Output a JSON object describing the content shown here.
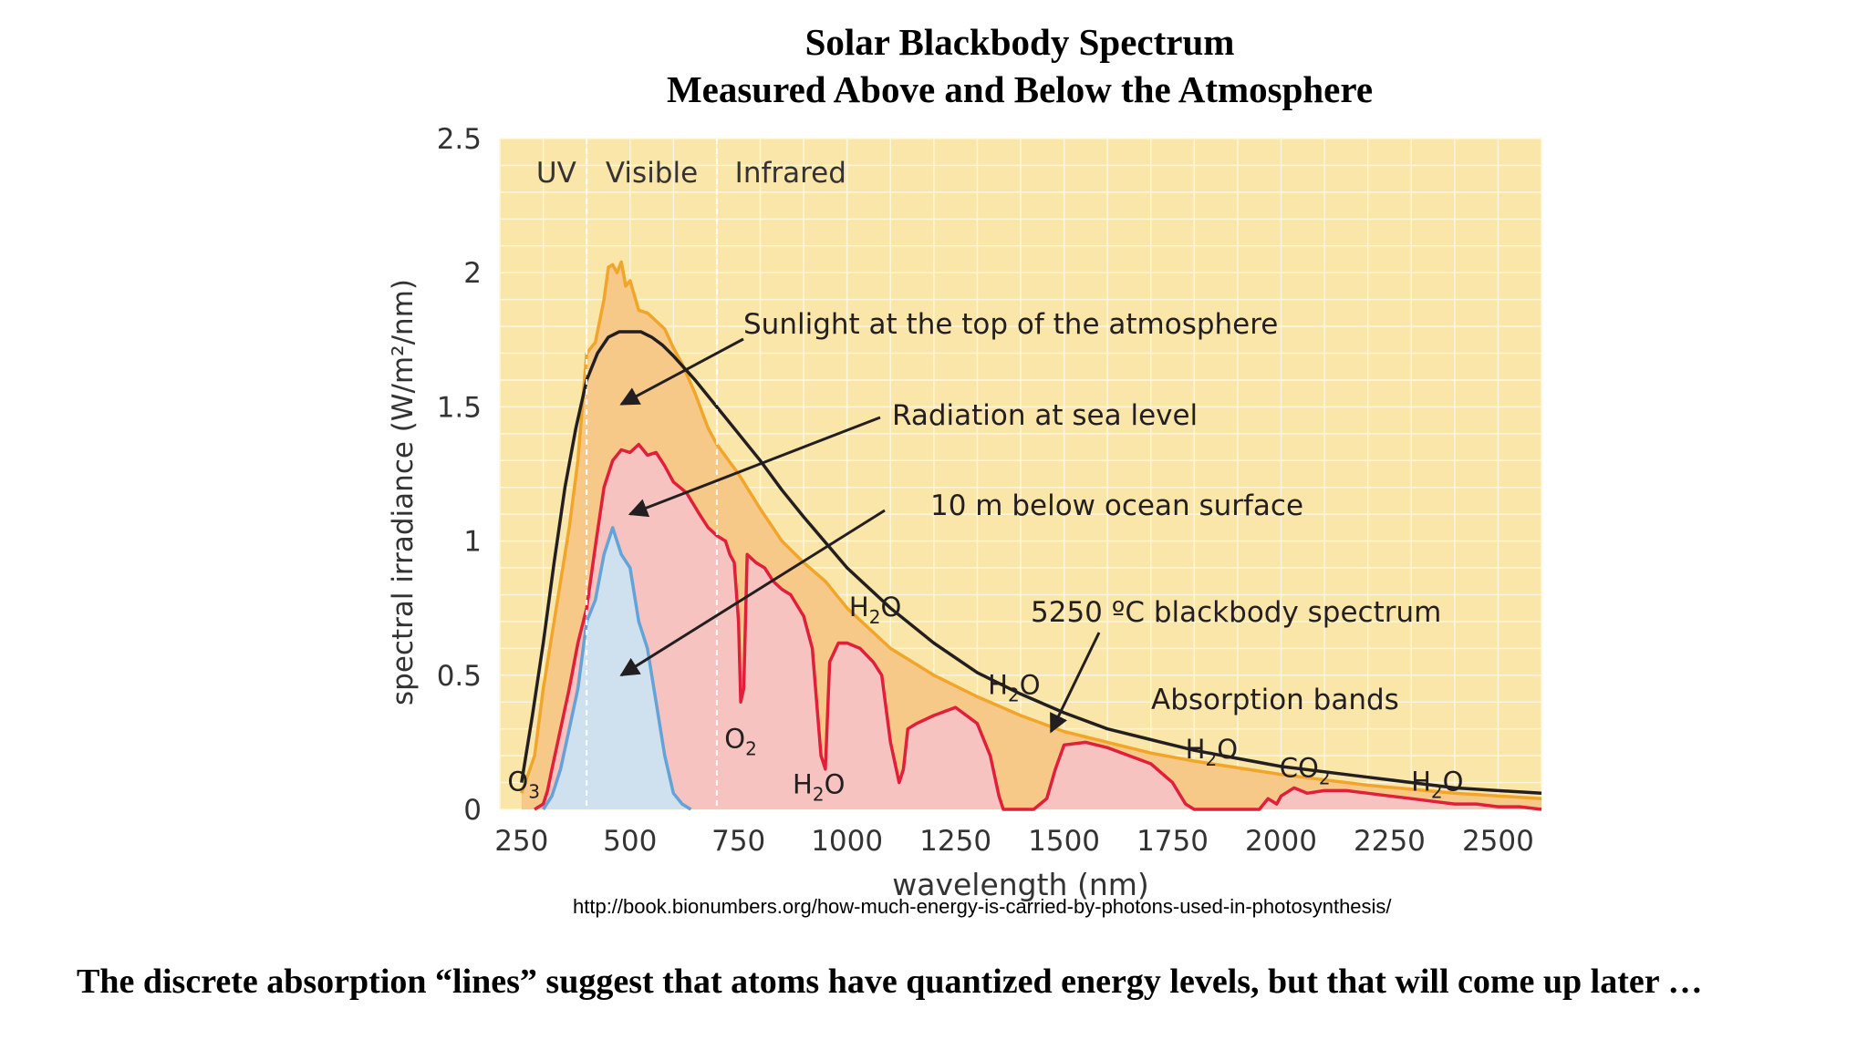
{
  "slide": {
    "title_line1": "Solar Blackbody Spectrum",
    "title_line2": "Measured Above and Below the Atmosphere",
    "source_url": "http://book.bionumbers.org/how-much-energy-is-carried-by-photons-used-in-photosynthesis/",
    "footer_note": "The discrete absorption “lines” suggest that atoms have quantized energy levels, but that will come up later …"
  },
  "colors": {
    "plot_background": "#fbe6a9",
    "gridline": "#fff6dc",
    "top_of_atmosphere_fill": "#f7c989",
    "top_of_atmosphere_line": "#f2a52b",
    "sea_level_fill": "#f6c3c0",
    "sea_level_line": "#e0203b",
    "ocean_fill": "#cfe0ee",
    "ocean_line": "#64a3d8",
    "blackbody_line": "#231f20",
    "axis_text": "#333333"
  },
  "chart_data": {
    "type": "area",
    "title": "",
    "xlabel": "wavelength (nm)",
    "ylabel": "spectral irradiance (W/m²/nm)",
    "xlim": [
      200,
      2600
    ],
    "ylim": [
      0,
      2.5
    ],
    "x_ticks": [
      "250",
      "500",
      "750",
      "1000",
      "1250",
      "1500",
      "1750",
      "2000",
      "2250",
      "2500"
    ],
    "x_tick_values": [
      250,
      500,
      750,
      1000,
      1250,
      1500,
      1750,
      2000,
      2250,
      2500
    ],
    "y_ticks": [
      "0",
      "0.5",
      "1",
      "1.5",
      "2",
      "2.5"
    ],
    "y_tick_values": [
      0,
      0.5,
      1,
      1.5,
      2,
      2.5
    ],
    "grid": true,
    "region_labels": [
      "UV",
      "Visible",
      "Infrared"
    ],
    "region_boundaries": [
      400,
      700
    ],
    "series": [
      {
        "name": "Sunlight at the top of the atmosphere",
        "style": "filled",
        "x": [
          250,
          280,
          300,
          320,
          340,
          360,
          380,
          400,
          410,
          420,
          440,
          450,
          460,
          470,
          480,
          490,
          500,
          520,
          540,
          560,
          580,
          600,
          620,
          650,
          680,
          700,
          750,
          800,
          850,
          900,
          950,
          1000,
          1100,
          1200,
          1300,
          1400,
          1500,
          1600,
          1700,
          1800,
          2000,
          2200,
          2400,
          2600
        ],
        "y": [
          0.06,
          0.2,
          0.45,
          0.65,
          0.85,
          1.05,
          1.3,
          1.7,
          1.72,
          1.74,
          1.9,
          2.02,
          2.03,
          2.0,
          2.04,
          1.95,
          1.97,
          1.86,
          1.85,
          1.82,
          1.79,
          1.72,
          1.66,
          1.55,
          1.42,
          1.36,
          1.25,
          1.12,
          1.0,
          0.92,
          0.85,
          0.75,
          0.6,
          0.5,
          0.42,
          0.35,
          0.29,
          0.25,
          0.21,
          0.18,
          0.13,
          0.09,
          0.06,
          0.04
        ]
      },
      {
        "name": "Radiation at sea level",
        "style": "filled",
        "x": [
          280,
          300,
          310,
          320,
          340,
          360,
          380,
          400,
          420,
          440,
          460,
          480,
          500,
          520,
          540,
          560,
          580,
          600,
          630,
          660,
          680,
          700,
          720,
          730,
          740,
          750,
          755,
          762,
          770,
          790,
          810,
          830,
          850,
          870,
          900,
          920,
          940,
          950,
          960,
          980,
          1000,
          1030,
          1060,
          1080,
          1100,
          1120,
          1130,
          1140,
          1160,
          1200,
          1250,
          1300,
          1330,
          1350,
          1360,
          1400,
          1430,
          1460,
          1480,
          1500,
          1550,
          1600,
          1650,
          1700,
          1750,
          1780,
          1800,
          1900,
          1950,
          1970,
          1990,
          2000,
          2030,
          2060,
          2100,
          2150,
          2200,
          2250,
          2300,
          2350,
          2400,
          2450,
          2500,
          2550,
          2600
        ],
        "y": [
          0,
          0.02,
          0.07,
          0.15,
          0.3,
          0.45,
          0.62,
          0.75,
          0.98,
          1.2,
          1.3,
          1.34,
          1.33,
          1.36,
          1.32,
          1.33,
          1.28,
          1.22,
          1.18,
          1.1,
          1.05,
          1.02,
          1.0,
          0.95,
          0.92,
          0.7,
          0.4,
          0.45,
          0.95,
          0.92,
          0.9,
          0.85,
          0.82,
          0.8,
          0.72,
          0.6,
          0.2,
          0.15,
          0.55,
          0.62,
          0.62,
          0.6,
          0.55,
          0.5,
          0.25,
          0.1,
          0.15,
          0.3,
          0.32,
          0.35,
          0.38,
          0.32,
          0.2,
          0.05,
          0.0,
          0.0,
          0.0,
          0.04,
          0.15,
          0.24,
          0.25,
          0.23,
          0.2,
          0.17,
          0.1,
          0.02,
          0.0,
          0.0,
          0.0,
          0.04,
          0.02,
          0.05,
          0.08,
          0.06,
          0.07,
          0.07,
          0.06,
          0.05,
          0.04,
          0.03,
          0.02,
          0.02,
          0.01,
          0.01,
          0.0
        ]
      },
      {
        "name": "10 m below ocean surface",
        "style": "filled",
        "x": [
          300,
          320,
          340,
          360,
          380,
          400,
          420,
          440,
          460,
          480,
          500,
          520,
          540,
          560,
          580,
          600,
          620,
          640
        ],
        "y": [
          0.0,
          0.05,
          0.15,
          0.3,
          0.45,
          0.7,
          0.78,
          0.95,
          1.05,
          0.95,
          0.9,
          0.7,
          0.6,
          0.4,
          0.2,
          0.06,
          0.02,
          0.0
        ]
      },
      {
        "name": "5250 ºC blackbody spectrum",
        "style": "line",
        "x": [
          250,
          275,
          300,
          325,
          350,
          375,
          400,
          425,
          450,
          475,
          500,
          525,
          550,
          575,
          600,
          650,
          700,
          750,
          800,
          850,
          900,
          1000,
          1100,
          1200,
          1300,
          1400,
          1500,
          1600,
          1700,
          1800,
          1900,
          2000,
          2200,
          2400,
          2600
        ],
        "y": [
          0.1,
          0.35,
          0.62,
          0.92,
          1.2,
          1.42,
          1.6,
          1.7,
          1.76,
          1.78,
          1.78,
          1.78,
          1.76,
          1.73,
          1.69,
          1.6,
          1.5,
          1.4,
          1.3,
          1.19,
          1.09,
          0.9,
          0.75,
          0.62,
          0.51,
          0.43,
          0.36,
          0.3,
          0.26,
          0.22,
          0.19,
          0.16,
          0.12,
          0.08,
          0.06
        ]
      }
    ],
    "annotations": [
      {
        "text": "Sunlight at the top of the atmosphere",
        "x": 480,
        "y": 1.51
      },
      {
        "text": "Radiation at sea level",
        "x": 500,
        "y": 1.1
      },
      {
        "text": "10 m below ocean surface",
        "x": 480,
        "y": 0.5
      },
      {
        "text": "5250 ºC blackbody spectrum",
        "x": 1470,
        "y": 0.29
      },
      {
        "text": "Absorption bands"
      }
    ],
    "absorption_labels": [
      {
        "molecule": "O",
        "subscript": "3",
        "x": 255,
        "y": 0.07
      },
      {
        "molecule": "O",
        "subscript": "2",
        "x": 755,
        "y": 0.23
      },
      {
        "molecule": "H",
        "subscript": "2",
        "suffix": "O",
        "x": 935,
        "y": 0.06
      },
      {
        "molecule": "H",
        "subscript": "2",
        "suffix": "O",
        "x": 1065,
        "y": 0.72
      },
      {
        "molecule": "H",
        "subscript": "2",
        "suffix": "O",
        "x": 1385,
        "y": 0.43
      },
      {
        "molecule": "H",
        "subscript": "2",
        "suffix": "O",
        "x": 1840,
        "y": 0.19
      },
      {
        "molecule": "CO",
        "subscript": "2",
        "x": 2055,
        "y": 0.12
      },
      {
        "molecule": "H",
        "subscript": "2",
        "suffix": "O",
        "x": 2360,
        "y": 0.07
      }
    ]
  }
}
